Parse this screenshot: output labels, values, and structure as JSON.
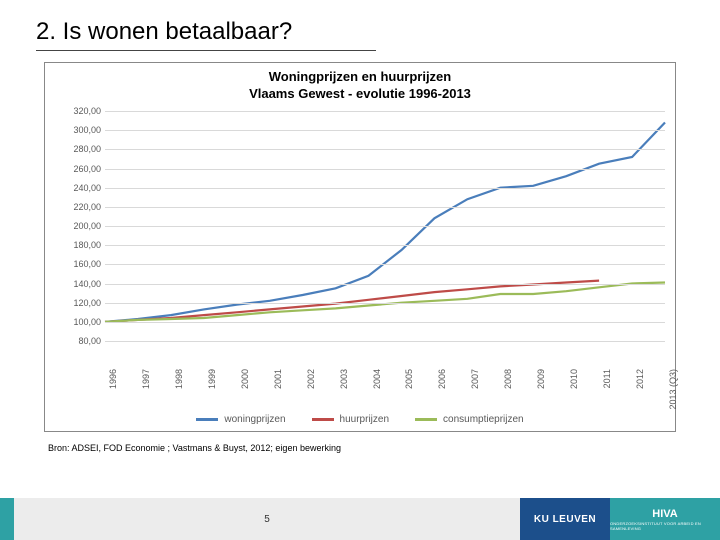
{
  "slide": {
    "title": "2. Is wonen betaalbaar?",
    "source": "Bron: ADSEI, FOD Economie ; Vastmans & Buyst, 2012; eigen bewerking",
    "page_number": "5"
  },
  "logos": {
    "ku_leuven": "KU LEUVEN",
    "hiva": "HIVA",
    "hiva_sub": "ONDERZOEKSINSTITUUT VOOR ARBEID EN SAMENLEVING"
  },
  "chart": {
    "type": "line",
    "title_line1": "Woningprijzen en huurprijzen",
    "title_line2": "Vlaams Gewest - evolutie 1996-2013",
    "title_fontsize": 13,
    "label_fontsize": 9,
    "background_color": "#ffffff",
    "grid_color": "#d9d9d9",
    "axis_text_color": "#595959",
    "ylim": [
      80,
      320
    ],
    "ytick_step": 20,
    "yticks": [
      "80,00",
      "100,00",
      "120,00",
      "140,00",
      "160,00",
      "180,00",
      "200,00",
      "220,00",
      "240,00",
      "260,00",
      "280,00",
      "300,00",
      "320,00"
    ],
    "xlabels": [
      "1996",
      "1997",
      "1998",
      "1999",
      "2000",
      "2001",
      "2002",
      "2003",
      "2004",
      "2005",
      "2006",
      "2007",
      "2008",
      "2009",
      "2010",
      "2011",
      "2012",
      "2013 (Q3)"
    ],
    "line_width": 2.2,
    "series": [
      {
        "name": "woningprijzen",
        "color": "#4a7ebb",
        "values": [
          100,
          103,
          107,
          113,
          118,
          122,
          128,
          135,
          148,
          175,
          208,
          228,
          240,
          242,
          252,
          265,
          272,
          308
        ]
      },
      {
        "name": "huurprijzen",
        "color": "#be4b48",
        "values": [
          100,
          102,
          104,
          107,
          110,
          113,
          116,
          119,
          123,
          127,
          131,
          134,
          137,
          139,
          141,
          143,
          null,
          null
        ]
      },
      {
        "name": "consumptieprijzen",
        "color": "#9bbb59",
        "values": [
          100,
          102,
          103,
          104,
          107,
          110,
          112,
          114,
          117,
          120,
          122,
          124,
          129,
          129,
          132,
          136,
          140,
          141
        ]
      }
    ],
    "legend": {
      "items": [
        {
          "label": "woningprijzen",
          "color": "#4a7ebb"
        },
        {
          "label": "huurprijzen",
          "color": "#be4b48"
        },
        {
          "label": "consumptieprijzen",
          "color": "#9bbb59"
        }
      ]
    }
  }
}
